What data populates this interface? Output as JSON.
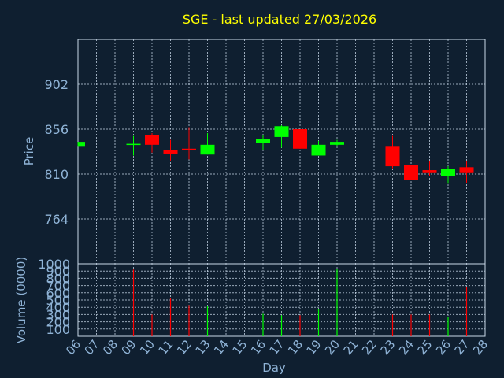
{
  "chart_data": {
    "type": "candlestick",
    "title": "SGE - last updated 27/03/2026",
    "price_axis": {
      "label": "Price",
      "ticks": [
        764,
        810,
        856,
        902
      ],
      "ylim": [
        718,
        948
      ]
    },
    "volume_axis": {
      "label": "Volume (0000)",
      "ticks": [
        100,
        200,
        300,
        400,
        500,
        600,
        700,
        800,
        900,
        1000
      ],
      "ylim": [
        0,
        1000
      ]
    },
    "x_axis": {
      "label": "Day",
      "ticks": [
        "06",
        "07",
        "08",
        "09",
        "10",
        "11",
        "12",
        "13",
        "14",
        "15",
        "16",
        "17",
        "18",
        "19",
        "20",
        "21",
        "22",
        "23",
        "24",
        "25",
        "26",
        "27",
        "28"
      ]
    },
    "grid": true,
    "colors": {
      "up": "#00ff00",
      "down": "#ff0000",
      "title": "#ffff00",
      "axis_text": "#8fb3d6",
      "background": "#0f1f30"
    },
    "candles": [
      {
        "day": "06",
        "open": 838,
        "high": 843,
        "low": 838,
        "close": 843
      },
      {
        "day": "09",
        "open": 841,
        "high": 849,
        "low": 829,
        "close": 841
      },
      {
        "day": "10",
        "open": 850,
        "high": 852,
        "low": 832,
        "close": 840
      },
      {
        "day": "11",
        "open": 835,
        "high": 845,
        "low": 823,
        "close": 831
      },
      {
        "day": "12",
        "open": 836,
        "high": 858,
        "low": 825,
        "close": 835
      },
      {
        "day": "13",
        "open": 830,
        "high": 852,
        "low": 830,
        "close": 840
      },
      {
        "day": "16",
        "open": 842,
        "high": 850,
        "low": 835,
        "close": 846
      },
      {
        "day": "17",
        "open": 848,
        "high": 860,
        "low": 837,
        "close": 859
      },
      {
        "day": "18",
        "open": 856,
        "high": 856,
        "low": 836,
        "close": 836
      },
      {
        "day": "19",
        "open": 829,
        "high": 844,
        "low": 829,
        "close": 840
      },
      {
        "day": "20",
        "open": 840,
        "high": 845,
        "low": 838,
        "close": 843
      },
      {
        "day": "23",
        "open": 838,
        "high": 849,
        "low": 816,
        "close": 818
      },
      {
        "day": "24",
        "open": 819,
        "high": 819,
        "low": 804,
        "close": 804
      },
      {
        "day": "25",
        "open": 814,
        "high": 823,
        "low": 808,
        "close": 811
      },
      {
        "day": "26",
        "open": 808,
        "high": 818,
        "low": 800,
        "close": 815
      },
      {
        "day": "27",
        "open": 817,
        "high": 823,
        "low": 801,
        "close": 811
      }
    ],
    "volume": [
      {
        "day": "06",
        "value": 0,
        "dir": "up"
      },
      {
        "day": "09",
        "value": 920,
        "dir": "down"
      },
      {
        "day": "10",
        "value": 300,
        "dir": "down"
      },
      {
        "day": "11",
        "value": 520,
        "dir": "down"
      },
      {
        "day": "12",
        "value": 430,
        "dir": "down"
      },
      {
        "day": "13",
        "value": 420,
        "dir": "up"
      },
      {
        "day": "16",
        "value": 310,
        "dir": "up"
      },
      {
        "day": "17",
        "value": 290,
        "dir": "up"
      },
      {
        "day": "18",
        "value": 290,
        "dir": "down"
      },
      {
        "day": "19",
        "value": 370,
        "dir": "up"
      },
      {
        "day": "20",
        "value": 930,
        "dir": "up"
      },
      {
        "day": "23",
        "value": 300,
        "dir": "down"
      },
      {
        "day": "24",
        "value": 300,
        "dir": "down"
      },
      {
        "day": "25",
        "value": 300,
        "dir": "down"
      },
      {
        "day": "26",
        "value": 260,
        "dir": "up"
      },
      {
        "day": "27",
        "value": 680,
        "dir": "down"
      }
    ]
  }
}
